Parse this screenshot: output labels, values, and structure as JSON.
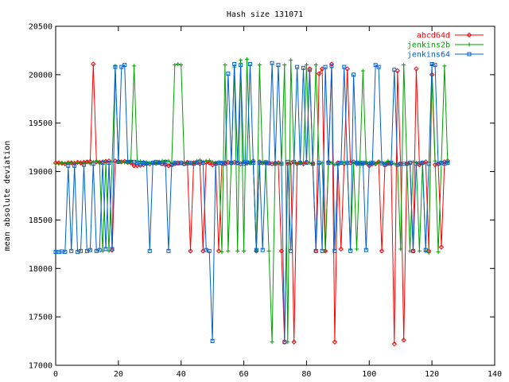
{
  "chart_data": {
    "type": "line",
    "title": "Hash size 131071",
    "xlabel": "",
    "ylabel": "mean absolute deviation",
    "xlim": [
      0,
      140
    ],
    "ylim": [
      17000,
      20500
    ],
    "xticks": [
      0,
      20,
      40,
      60,
      80,
      100,
      120,
      140
    ],
    "yticks": [
      17000,
      17500,
      18000,
      18500,
      19000,
      19500,
      20000,
      20500
    ],
    "grid": false,
    "legend": "top-right",
    "x": {
      "start": 0,
      "end": 125
    },
    "series": [
      {
        "name": "abcd64d",
        "color": "#ff0000",
        "marker": "diamond",
        "values": [
          19090,
          19090,
          19085,
          19080,
          19090,
          19090,
          19085,
          19095,
          19090,
          19095,
          19100,
          19105,
          20110,
          19100,
          19095,
          19100,
          19105,
          19110,
          18190,
          19110,
          19105,
          19100,
          19105,
          19095,
          19090,
          19060,
          19060,
          19065,
          19070,
          19080,
          19080,
          19090,
          19085,
          19095,
          19080,
          19070,
          19060,
          19070,
          19080,
          19090,
          19090,
          19080,
          19095,
          18180,
          19090,
          19095,
          19080,
          18180,
          19095,
          19090,
          19070,
          19085,
          18180,
          19080,
          19090,
          19095,
          19085,
          19095,
          19090,
          19080,
          19100,
          19085,
          19090,
          19110,
          18180,
          19100,
          19090,
          19085,
          19090,
          19080,
          19090,
          19090,
          18180,
          17240,
          19080,
          19090,
          17240,
          19080,
          19090,
          19080,
          19100,
          20060,
          19080,
          18180,
          20010,
          20060,
          18180,
          19100,
          20110,
          17240,
          19090,
          18200,
          19080,
          20060,
          19090,
          19100,
          19080,
          19090,
          19080,
          19090,
          19060,
          19080,
          19080,
          19100,
          18180,
          19070,
          19090,
          19080,
          17220,
          20040,
          19080,
          17260,
          19080,
          19090,
          18180,
          20060,
          19070,
          19090,
          19100,
          18180,
          20000,
          19070,
          19080,
          18220,
          19100,
          19110
        ]
      },
      {
        "name": "jenkins2b",
        "color": "#00a000",
        "marker": "cross",
        "values": [
          19080,
          19080,
          19090,
          19085,
          19090,
          19095,
          19080,
          19090,
          19085,
          19090,
          19100,
          19080,
          19100,
          19110,
          19090,
          18180,
          19100,
          18180,
          19100,
          20090,
          19105,
          19100,
          19095,
          19095,
          19110,
          20090,
          19110,
          19105,
          19100,
          19095,
          19090,
          19085,
          19090,
          19100,
          19110,
          19105,
          19110,
          19090,
          20100,
          20110,
          20100,
          19095,
          19090,
          19085,
          19090,
          19110,
          19120,
          19100,
          19110,
          19115,
          19100,
          19090,
          19095,
          18170,
          20100,
          18180,
          19090,
          20080,
          18180,
          20150,
          18180,
          20160,
          19090,
          19100,
          18180,
          20100,
          19090,
          19100,
          18180,
          17240,
          19090,
          19085,
          19080,
          20100,
          17240,
          20150,
          19100,
          19080,
          19090,
          19085,
          20100,
          19090,
          19080,
          20100,
          19080,
          19090,
          18180,
          19100,
          19090,
          19070,
          19080,
          19090,
          19095,
          19090,
          18200,
          19085,
          18200,
          19090,
          20040,
          19095,
          19090,
          19085,
          19080,
          19100,
          19095,
          19090,
          19110,
          19090,
          19080,
          19070,
          18200,
          20100,
          19080,
          18180,
          19100,
          19090,
          18180,
          19080,
          18180,
          18160,
          20100,
          19110,
          18170,
          19100,
          20090,
          19090
        ]
      },
      {
        "name": "jenkins64",
        "color": "#0060d0",
        "marker": "square",
        "values": [
          18170,
          18170,
          18175,
          18170,
          19060,
          18180,
          19060,
          18170,
          18180,
          19070,
          18180,
          18190,
          19080,
          18180,
          18190,
          19090,
          18200,
          19090,
          18200,
          20080,
          19100,
          20080,
          20100,
          19100,
          19100,
          19100,
          19090,
          19080,
          19090,
          19085,
          18180,
          19090,
          19100,
          19090,
          19080,
          19100,
          18180,
          19070,
          19090,
          19085,
          19090,
          19080,
          19085,
          19090,
          19080,
          19090,
          19100,
          19090,
          18190,
          18180,
          17250,
          19080,
          19090,
          19090,
          19080,
          20010,
          19090,
          20110,
          19090,
          20100,
          19080,
          19095,
          20110,
          19090,
          18190,
          19090,
          18190,
          19095,
          19085,
          20120,
          19080,
          20100,
          19080,
          17240,
          19100,
          18180,
          19100,
          20080,
          19090,
          20070,
          19090,
          20050,
          19080,
          18180,
          19090,
          18180,
          20080,
          19090,
          20090,
          18180,
          19080,
          19090,
          20080,
          19090,
          18180,
          20000,
          19090,
          19080,
          19090,
          18190,
          19080,
          19090,
          20100,
          20080,
          19085,
          19070,
          19080,
          19090,
          20050,
          19070,
          19080,
          19080,
          19080,
          19090,
          18180,
          19080,
          19085,
          19090,
          18190,
          19080,
          20110,
          20100,
          19080,
          19090,
          19080,
          19090
        ]
      }
    ]
  }
}
